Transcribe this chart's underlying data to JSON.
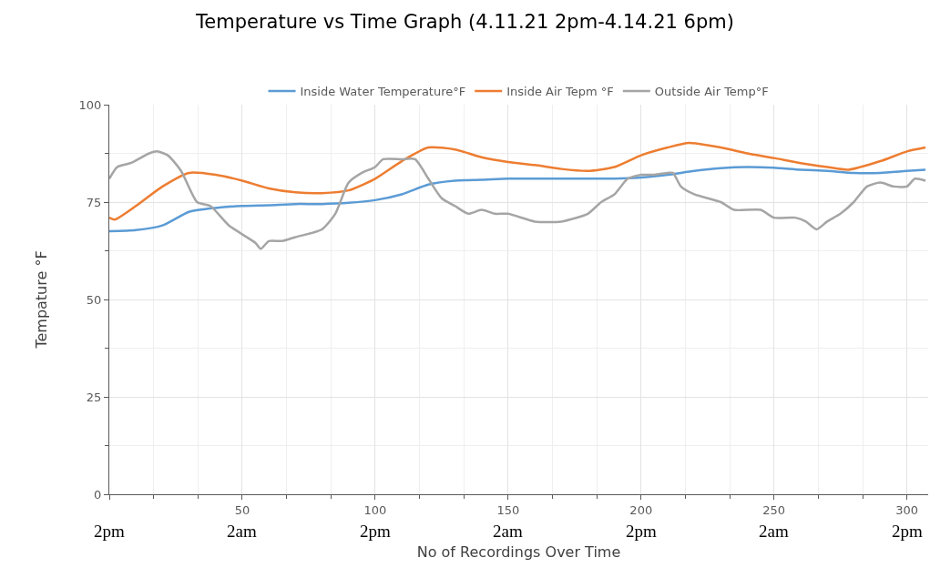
{
  "chart_data": {
    "type": "line",
    "title": "Temperature vs Time Graph (4.11.21 2pm-4.14.21 6pm)",
    "xlabel": "No of Recordings Over Time",
    "ylabel": "Tempature °F",
    "xlim": [
      0,
      308
    ],
    "xticks": [
      {
        "value": 0,
        "label": null
      },
      50,
      100,
      150,
      200,
      250,
      300
    ],
    "annotations": [
      "2pm",
      "2am",
      "2pm",
      "2am",
      "2pm",
      "2am",
      "2pm"
    ],
    "ylim": [
      0,
      100
    ],
    "yticks": [
      0,
      25,
      50,
      75,
      100
    ],
    "grid": true,
    "legend": "top",
    "marker": "none",
    "line_style": "solid",
    "series": [
      {
        "name": "Inside Water Temperature°F",
        "color": "#5b9bd5",
        "x": [
          0,
          10,
          20,
          30,
          40,
          50,
          60,
          70,
          80,
          90,
          100,
          110,
          120,
          130,
          140,
          150,
          160,
          170,
          180,
          190,
          200,
          210,
          220,
          230,
          240,
          250,
          260,
          270,
          280,
          290,
          300,
          307
        ],
        "values": [
          67.5,
          67.8,
          69,
          72.5,
          73.5,
          74,
          74.2,
          74.5,
          74.5,
          74.8,
          75.5,
          77,
          79.5,
          80.5,
          80.7,
          81,
          81,
          81,
          81,
          81,
          81.3,
          82,
          83,
          83.7,
          84,
          83.8,
          83.3,
          83,
          82.5,
          82.5,
          83,
          83.3
        ]
      },
      {
        "name": "Inside Air Tepm °F",
        "color": "#ed7d31",
        "x": [
          0,
          2,
          10,
          20,
          30,
          40,
          50,
          60,
          70,
          80,
          90,
          100,
          110,
          120,
          130,
          140,
          150,
          160,
          170,
          180,
          190,
          200,
          210,
          218,
          230,
          240,
          250,
          260,
          270,
          278,
          290,
          300,
          307
        ],
        "values": [
          71,
          70.5,
          74,
          79,
          82.5,
          82,
          80.5,
          78.5,
          77.5,
          77.3,
          78,
          81,
          85.5,
          89,
          88.5,
          86.5,
          85.3,
          84.5,
          83.5,
          83,
          84,
          87,
          89,
          90.2,
          89,
          87.5,
          86.3,
          85,
          84,
          83.3,
          85.5,
          88,
          89
        ]
      },
      {
        "name": "Outside Air Temp°F",
        "color": "#a5a5a5",
        "x": [
          0,
          3,
          8,
          15,
          18,
          22,
          27,
          33,
          38,
          45,
          55,
          57,
          60,
          65,
          70,
          80,
          85,
          90,
          95,
          100,
          103,
          110,
          115,
          120,
          125,
          130,
          135,
          140,
          145,
          150,
          160,
          170,
          180,
          185,
          190,
          195,
          200,
          205,
          210,
          212,
          215,
          220,
          230,
          235,
          245,
          250,
          258,
          262,
          266,
          270,
          275,
          280,
          285,
          290,
          295,
          300,
          303,
          307
        ],
        "values": [
          81,
          84,
          85,
          87.5,
          88,
          87,
          83,
          75,
          74,
          69,
          64.5,
          63,
          65,
          65,
          66,
          68,
          72,
          80,
          82.5,
          84,
          86,
          86,
          86,
          81,
          76,
          74,
          72,
          73,
          72,
          72,
          70,
          70,
          72,
          75,
          77,
          81,
          82,
          82,
          82.5,
          82.5,
          79,
          77,
          75,
          73,
          73,
          71,
          71,
          70,
          68,
          70,
          72,
          75,
          79,
          80,
          79,
          79,
          81,
          80.5
        ]
      }
    ]
  }
}
